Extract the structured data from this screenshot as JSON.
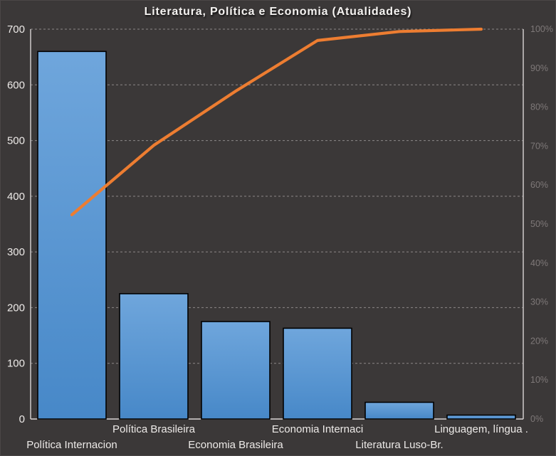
{
  "chart_data": {
    "type": "pareto (bar + cumulative line)",
    "title": "Literatura, Política e Economia (Atualidades)",
    "categories": [
      "Política Internacion",
      "Política Brasileira",
      "Economia Brasileira",
      "Economia Internaci",
      "Literatura Luso-Br.",
      "Linguagem, língua ."
    ],
    "series": [
      {
        "type": "bar",
        "axis": "left",
        "values": [
          660,
          225,
          175,
          163,
          30,
          7
        ]
      },
      {
        "type": "line",
        "axis": "right",
        "values": [
          52.4,
          70.2,
          84.1,
          97.1,
          99.4,
          100
        ]
      }
    ],
    "left_axis": {
      "min": 0,
      "max": 700,
      "step": 100,
      "ticks": [
        "0",
        "100",
        "200",
        "300",
        "400",
        "500",
        "600",
        "700"
      ]
    },
    "right_axis": {
      "min": 0,
      "max": 100,
      "step": 10,
      "ticks": [
        "0%",
        "10%",
        "20%",
        "30%",
        "40%",
        "50%",
        "60%",
        "70%",
        "80%",
        "90%",
        "100%"
      ]
    },
    "grid": "horizontal dashed",
    "legend_position": "none",
    "colors": {
      "background": "#3B3838",
      "bar_top": "#6FA6DC",
      "bar_bottom": "#4788C8",
      "bar_border": "#000000",
      "line": "#ED7D31",
      "grid": "#A8A4A4",
      "axis": "#D9D6D6",
      "left_tick_label": "#EDEAE8",
      "right_tick_label": "#7E7878",
      "category_label": "#EDEAE8",
      "title": "#F5F3F1"
    }
  }
}
